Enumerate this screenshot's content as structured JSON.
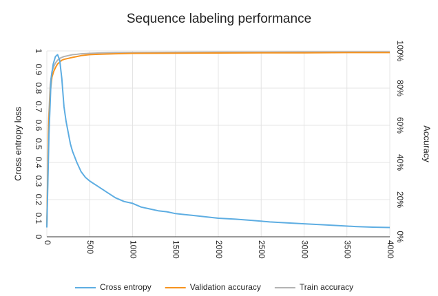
{
  "chart_data": {
    "type": "line",
    "title": "Sequence labeling performance",
    "xlabel": "",
    "ylabel_left": "Cross entropy loss",
    "ylabel_right": "Accuracy",
    "xlim": [
      0,
      4000
    ],
    "ylim_left": [
      0,
      1
    ],
    "ylim_right": [
      0,
      100
    ],
    "x_ticks": [
      "0",
      "500",
      "1000",
      "1500",
      "2000",
      "2500",
      "3000",
      "3500",
      "4000"
    ],
    "y_left_ticks": [
      "0",
      "0.1",
      "0.2",
      "0.3",
      "0.4",
      "0.5",
      "0.6",
      "0.7",
      "0.8",
      "0.9",
      "1"
    ],
    "y_right_ticks": [
      "0%",
      "20%",
      "40%",
      "60%",
      "80%",
      "100%"
    ],
    "grid": true,
    "legend_position": "bottom",
    "series": [
      {
        "name": "Cross entropy",
        "color": "#5DADE2",
        "axis": "left",
        "x": [
          0,
          25,
          50,
          75,
          100,
          125,
          150,
          175,
          200,
          225,
          250,
          275,
          300,
          350,
          400,
          450,
          500,
          600,
          700,
          800,
          900,
          1000,
          1100,
          1200,
          1300,
          1400,
          1500,
          1600,
          1700,
          1800,
          1900,
          2000,
          2200,
          2400,
          2600,
          2800,
          3000,
          3200,
          3400,
          3600,
          3800,
          4000
        ],
        "values": [
          0.05,
          0.55,
          0.85,
          0.93,
          0.97,
          0.98,
          0.95,
          0.85,
          0.7,
          0.62,
          0.56,
          0.5,
          0.46,
          0.4,
          0.35,
          0.32,
          0.3,
          0.27,
          0.24,
          0.21,
          0.19,
          0.18,
          0.16,
          0.15,
          0.14,
          0.135,
          0.125,
          0.12,
          0.115,
          0.11,
          0.105,
          0.1,
          0.095,
          0.088,
          0.08,
          0.075,
          0.07,
          0.065,
          0.06,
          0.055,
          0.052,
          0.05
        ]
      },
      {
        "name": "Validation accuracy",
        "color": "#F7931E",
        "axis": "right",
        "x": [
          0,
          20,
          40,
          60,
          80,
          100,
          125,
          150,
          175,
          200,
          250,
          300,
          350,
          400,
          500,
          600,
          800,
          1000,
          1500,
          2000,
          2500,
          3000,
          3500,
          4000
        ],
        "values": [
          5,
          58,
          78,
          86,
          89,
          91,
          93,
          94,
          95,
          95.5,
          96,
          96.5,
          97,
          97.5,
          98,
          98.2,
          98.5,
          98.7,
          98.8,
          98.9,
          99,
          99,
          99.1,
          99.1
        ]
      },
      {
        "name": "Train accuracy",
        "color": "#B3B3B3",
        "axis": "right",
        "x": [
          0,
          20,
          40,
          60,
          80,
          100,
          125,
          150,
          175,
          200,
          250,
          300,
          350,
          400,
          500,
          600,
          800,
          1000,
          1500,
          2000,
          2500,
          3000,
          3500,
          4000
        ],
        "values": [
          5,
          62,
          82,
          89,
          91.5,
          93.5,
          95,
          96,
          96.5,
          97,
          97.5,
          98,
          98.2,
          98.5,
          98.7,
          98.9,
          99.1,
          99.2,
          99.3,
          99.4,
          99.4,
          99.5,
          99.5,
          99.5
        ]
      }
    ]
  }
}
